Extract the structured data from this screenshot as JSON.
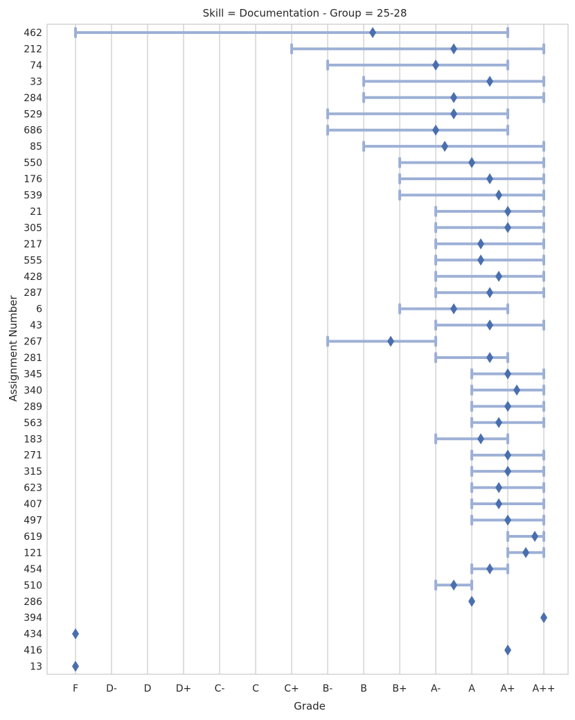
{
  "chart_data": {
    "type": "errorbar-range",
    "title": "Skill = Documentation - Group = 25-28",
    "xlabel": "Grade",
    "ylabel": "Assignment Number",
    "x_categories": [
      "F",
      "D-",
      "D",
      "D+",
      "C-",
      "C",
      "C+",
      "B-",
      "B",
      "B+",
      "A-",
      "A",
      "A+",
      "A++"
    ],
    "grid": true,
    "rows": [
      {
        "id": "462",
        "low": 0,
        "high": 12,
        "point": 8.25
      },
      {
        "id": "212",
        "low": 6,
        "high": 13,
        "point": 10.5
      },
      {
        "id": "74",
        "low": 7,
        "high": 12,
        "point": 10
      },
      {
        "id": "33",
        "low": 8,
        "high": 13,
        "point": 11.5
      },
      {
        "id": "284",
        "low": 8,
        "high": 13,
        "point": 10.5
      },
      {
        "id": "529",
        "low": 7,
        "high": 12,
        "point": 10.5
      },
      {
        "id": "686",
        "low": 7,
        "high": 12,
        "point": 10
      },
      {
        "id": "85",
        "low": 8,
        "high": 13,
        "point": 10.25
      },
      {
        "id": "550",
        "low": 9,
        "high": 13,
        "point": 11
      },
      {
        "id": "176",
        "low": 9,
        "high": 13,
        "point": 11.5
      },
      {
        "id": "539",
        "low": 9,
        "high": 13,
        "point": 11.75
      },
      {
        "id": "21",
        "low": 10,
        "high": 13,
        "point": 12
      },
      {
        "id": "305",
        "low": 10,
        "high": 13,
        "point": 12
      },
      {
        "id": "217",
        "low": 10,
        "high": 13,
        "point": 11.25
      },
      {
        "id": "555",
        "low": 10,
        "high": 13,
        "point": 11.25
      },
      {
        "id": "428",
        "low": 10,
        "high": 13,
        "point": 11.75
      },
      {
        "id": "287",
        "low": 10,
        "high": 13,
        "point": 11.5
      },
      {
        "id": "6",
        "low": 9,
        "high": 12,
        "point": 10.5
      },
      {
        "id": "43",
        "low": 10,
        "high": 13,
        "point": 11.5
      },
      {
        "id": "267",
        "low": 7,
        "high": 10,
        "point": 8.75
      },
      {
        "id": "281",
        "low": 10,
        "high": 12,
        "point": 11.5
      },
      {
        "id": "345",
        "low": 11,
        "high": 13,
        "point": 12
      },
      {
        "id": "340",
        "low": 11,
        "high": 13,
        "point": 12.25
      },
      {
        "id": "289",
        "low": 11,
        "high": 13,
        "point": 12
      },
      {
        "id": "563",
        "low": 11,
        "high": 13,
        "point": 11.75
      },
      {
        "id": "183",
        "low": 10,
        "high": 12,
        "point": 11.25
      },
      {
        "id": "271",
        "low": 11,
        "high": 13,
        "point": 12
      },
      {
        "id": "315",
        "low": 11,
        "high": 13,
        "point": 12
      },
      {
        "id": "623",
        "low": 11,
        "high": 13,
        "point": 11.75
      },
      {
        "id": "407",
        "low": 11,
        "high": 13,
        "point": 11.75
      },
      {
        "id": "497",
        "low": 11,
        "high": 13,
        "point": 12
      },
      {
        "id": "619",
        "low": 12,
        "high": 13,
        "point": 12.75
      },
      {
        "id": "121",
        "low": 12,
        "high": 13,
        "point": 12.5
      },
      {
        "id": "454",
        "low": 11,
        "high": 12,
        "point": 11.5
      },
      {
        "id": "510",
        "low": 10,
        "high": 11,
        "point": 10.5
      },
      {
        "id": "286",
        "low": 11,
        "high": 11,
        "point": 11
      },
      {
        "id": "394",
        "low": 13,
        "high": 13,
        "point": 13
      },
      {
        "id": "434",
        "low": 0,
        "high": 0,
        "point": 0
      },
      {
        "id": "416",
        "low": 12,
        "high": 12,
        "point": 12
      },
      {
        "id": "13",
        "low": 0,
        "high": 0,
        "point": 0
      }
    ]
  }
}
